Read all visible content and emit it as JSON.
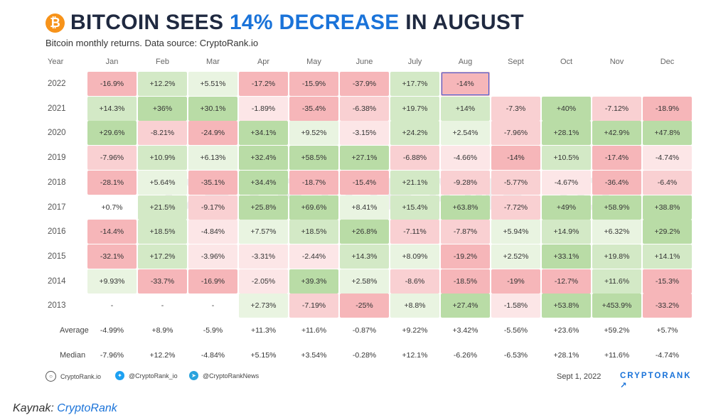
{
  "title": {
    "icon_symbol": "₿",
    "prefix": "BITCOIN SEES ",
    "accent": "14% DECREASE",
    "suffix": " IN AUGUST",
    "accent_color": "#1a73d9"
  },
  "subtitle": "Bitcoin monthly returns. Data source: CryptoRank.io",
  "chart_data": {
    "type": "table",
    "title": "BITCOIN SEES 14% DECREASE IN AUGUST",
    "subtitle": "Bitcoin monthly returns. Data source: CryptoRank.io",
    "year_header": "Year",
    "columns": [
      "Jan",
      "Feb",
      "Mar",
      "Apr",
      "May",
      "June",
      "July",
      "Aug",
      "Sept",
      "Oct",
      "Nov",
      "Dec"
    ],
    "rows": [
      {
        "year": "2022",
        "values": [
          "-16.9%",
          "+12.2%",
          "+5.51%",
          "-17.2%",
          "-15.9%",
          "-37.9%",
          "+17.7%",
          "-14%",
          "",
          "",
          "",
          ""
        ]
      },
      {
        "year": "2021",
        "values": [
          "+14.3%",
          "+36%",
          "+30.1%",
          "-1.89%",
          "-35.4%",
          "-6.38%",
          "+19.7%",
          "+14%",
          "-7.3%",
          "+40%",
          "-7.12%",
          "-18.9%"
        ]
      },
      {
        "year": "2020",
        "values": [
          "+29.6%",
          "-8.21%",
          "-24.9%",
          "+34.1%",
          "+9.52%",
          "-3.15%",
          "+24.2%",
          "+2.54%",
          "-7.96%",
          "+28.1%",
          "+42.9%",
          "+47.8%"
        ]
      },
      {
        "year": "2019",
        "values": [
          "-7.96%",
          "+10.9%",
          "+6.13%",
          "+32.4%",
          "+58.5%",
          "+27.1%",
          "-6.88%",
          "-4.66%",
          "-14%",
          "+10.5%",
          "-17.4%",
          "-4.74%"
        ]
      },
      {
        "year": "2018",
        "values": [
          "-28.1%",
          "+5.64%",
          "-35.1%",
          "+34.4%",
          "-18.7%",
          "-15.4%",
          "+21.1%",
          "-9.28%",
          "-5.77%",
          "-4.67%",
          "-36.4%",
          "-6.4%"
        ]
      },
      {
        "year": "2017",
        "values": [
          "+0.7%",
          "+21.5%",
          "-9.17%",
          "+25.8%",
          "+69.6%",
          "+8.41%",
          "+15.4%",
          "+63.8%",
          "-7.72%",
          "+49%",
          "+58.9%",
          "+38.8%"
        ]
      },
      {
        "year": "2016",
        "values": [
          "-14.4%",
          "+18.5%",
          "-4.84%",
          "+7.57%",
          "+18.5%",
          "+26.8%",
          "-7.11%",
          "-7.87%",
          "+5.94%",
          "+14.9%",
          "+6.32%",
          "+29.2%"
        ]
      },
      {
        "year": "2015",
        "values": [
          "-32.1%",
          "+17.2%",
          "-3.96%",
          "-3.31%",
          "-2.44%",
          "+14.3%",
          "+8.09%",
          "-19.2%",
          "+2.52%",
          "+33.1%",
          "+19.8%",
          "+14.1%"
        ]
      },
      {
        "year": "2014",
        "values": [
          "+9.93%",
          "-33.7%",
          "-16.9%",
          "-2.05%",
          "+39.3%",
          "+2.58%",
          "-8.6%",
          "-18.5%",
          "-19%",
          "-12.7%",
          "+11.6%",
          "-15.3%"
        ]
      },
      {
        "year": "2013",
        "values": [
          "-",
          "-",
          "-",
          "+2.73%",
          "-7.19%",
          "-25%",
          "+8.8%",
          "+27.4%",
          "-1.58%",
          "+53.8%",
          "+453.9%",
          "-33.2%"
        ]
      }
    ],
    "highlighted_cell": {
      "year": "2022",
      "month": "Aug"
    },
    "summary_rows": [
      {
        "label": "Average",
        "values": [
          "-4.99%",
          "+8.9%",
          "-5.9%",
          "+11.3%",
          "+11.6%",
          "-0.87%",
          "+9.22%",
          "+3.42%",
          "-5.56%",
          "+23.6%",
          "+59.2%",
          "+5.7%"
        ]
      },
      {
        "label": "Median",
        "values": [
          "-7.96%",
          "+12.2%",
          "-4.84%",
          "+5.15%",
          "+3.54%",
          "-0.28%",
          "+12.1%",
          "-6.26%",
          "-6.53%",
          "+28.1%",
          "+11.6%",
          "-4.74%"
        ]
      }
    ]
  },
  "colors": {
    "positive_strong": "#b9dca6",
    "positive_mid": "#d3e9c6",
    "positive_light": "#e9f4e1",
    "negative_strong": "#f6b6b9",
    "negative_mid": "#f9d0d2",
    "negative_light": "#fce6e7",
    "highlight_border": "#3b5bdb",
    "btc_orange": "#f7931a"
  },
  "watermark": "CRYPTORANK.IO",
  "footer": {
    "website_icon": "globe-icon",
    "website": "CryptoRank.io",
    "twitter_icon": "twitter-icon",
    "twitter": "@CryptoRank_io",
    "telegram_icon": "telegram-icon",
    "telegram": "@CryptoRankNews",
    "date": "Sept 1, 2022",
    "brand": "CRYPTORANK ↗"
  },
  "source": {
    "label": "Kaynak: ",
    "link_text": "CryptoRank"
  }
}
